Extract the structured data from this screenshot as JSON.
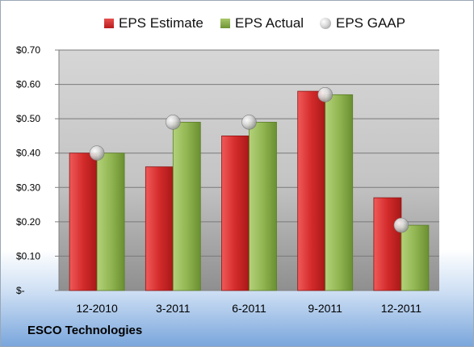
{
  "chart_data": {
    "type": "bar",
    "categories": [
      "12-2010",
      "3-2011",
      "6-2011",
      "9-2011",
      "12-2011"
    ],
    "series": [
      {
        "name": "EPS Estimate",
        "type": "bar",
        "color": "#c0282a",
        "values": [
          0.4,
          0.36,
          0.45,
          0.58,
          0.27
        ]
      },
      {
        "name": "EPS Actual",
        "type": "bar",
        "color": "#8aae4a",
        "values": [
          0.4,
          0.49,
          0.49,
          0.57,
          0.19
        ]
      },
      {
        "name": "EPS GAAP",
        "type": "marker",
        "color": "#b0b0b0",
        "values": [
          0.4,
          0.49,
          0.49,
          0.57,
          0.19
        ]
      }
    ],
    "y_ticks": [
      {
        "value": 0,
        "label": "$-"
      },
      {
        "value": 0.1,
        "label": "$0.10"
      },
      {
        "value": 0.2,
        "label": "$0.20"
      },
      {
        "value": 0.3,
        "label": "$0.30"
      },
      {
        "value": 0.4,
        "label": "$0.40"
      },
      {
        "value": 0.5,
        "label": "$0.50"
      },
      {
        "value": 0.6,
        "label": "$0.60"
      },
      {
        "value": 0.7,
        "label": "$0.70"
      }
    ],
    "ylim": [
      0,
      0.7
    ],
    "grid": true,
    "legend_position": "top"
  },
  "footer": {
    "company": "ESCO Technologies"
  }
}
